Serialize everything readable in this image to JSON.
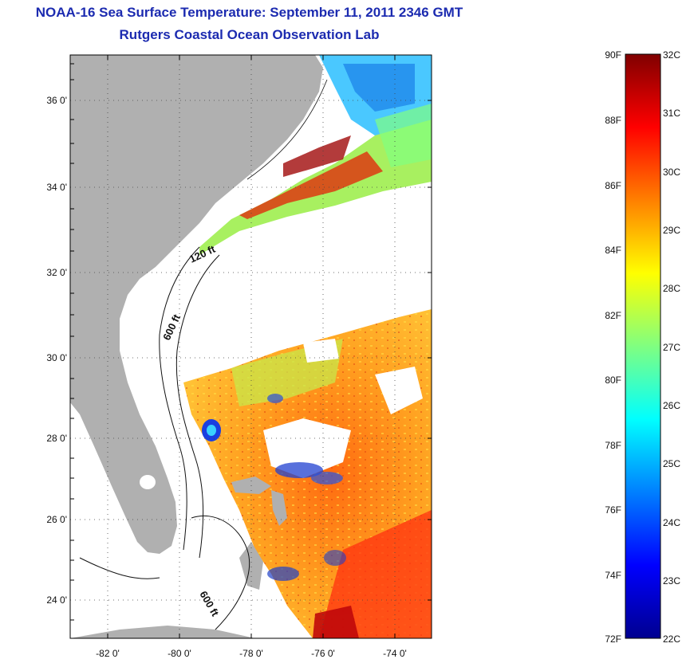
{
  "title": {
    "line1": "NOAA-16 Sea Surface Temperature:  September 11, 2011 2346 GMT",
    "line2": "Rutgers Coastal Ocean Observation Lab"
  },
  "map": {
    "lat_ticks": [
      "24 0'",
      "26 0'",
      "28 0'",
      "30 0'",
      "32 0'",
      "34 0'",
      "36 0'"
    ],
    "lon_ticks": [
      "-82 0'",
      "-80 0'",
      "-78 0'",
      "-76 0'",
      "-74 0'"
    ],
    "contour_labels": [
      "120 ft",
      "600 ft",
      "600 ft"
    ],
    "land_color": "#b0b0b0",
    "grid": "dotted"
  },
  "colorbar": {
    "fahrenheit": [
      "90F",
      "88F",
      "86F",
      "84F",
      "82F",
      "80F",
      "78F",
      "76F",
      "74F",
      "72F"
    ],
    "celsius": [
      "32C",
      "31C",
      "30C",
      "29C",
      "28C",
      "27C",
      "26C",
      "25C",
      "24C",
      "23C",
      "22C"
    ],
    "colormap": "jet"
  }
}
